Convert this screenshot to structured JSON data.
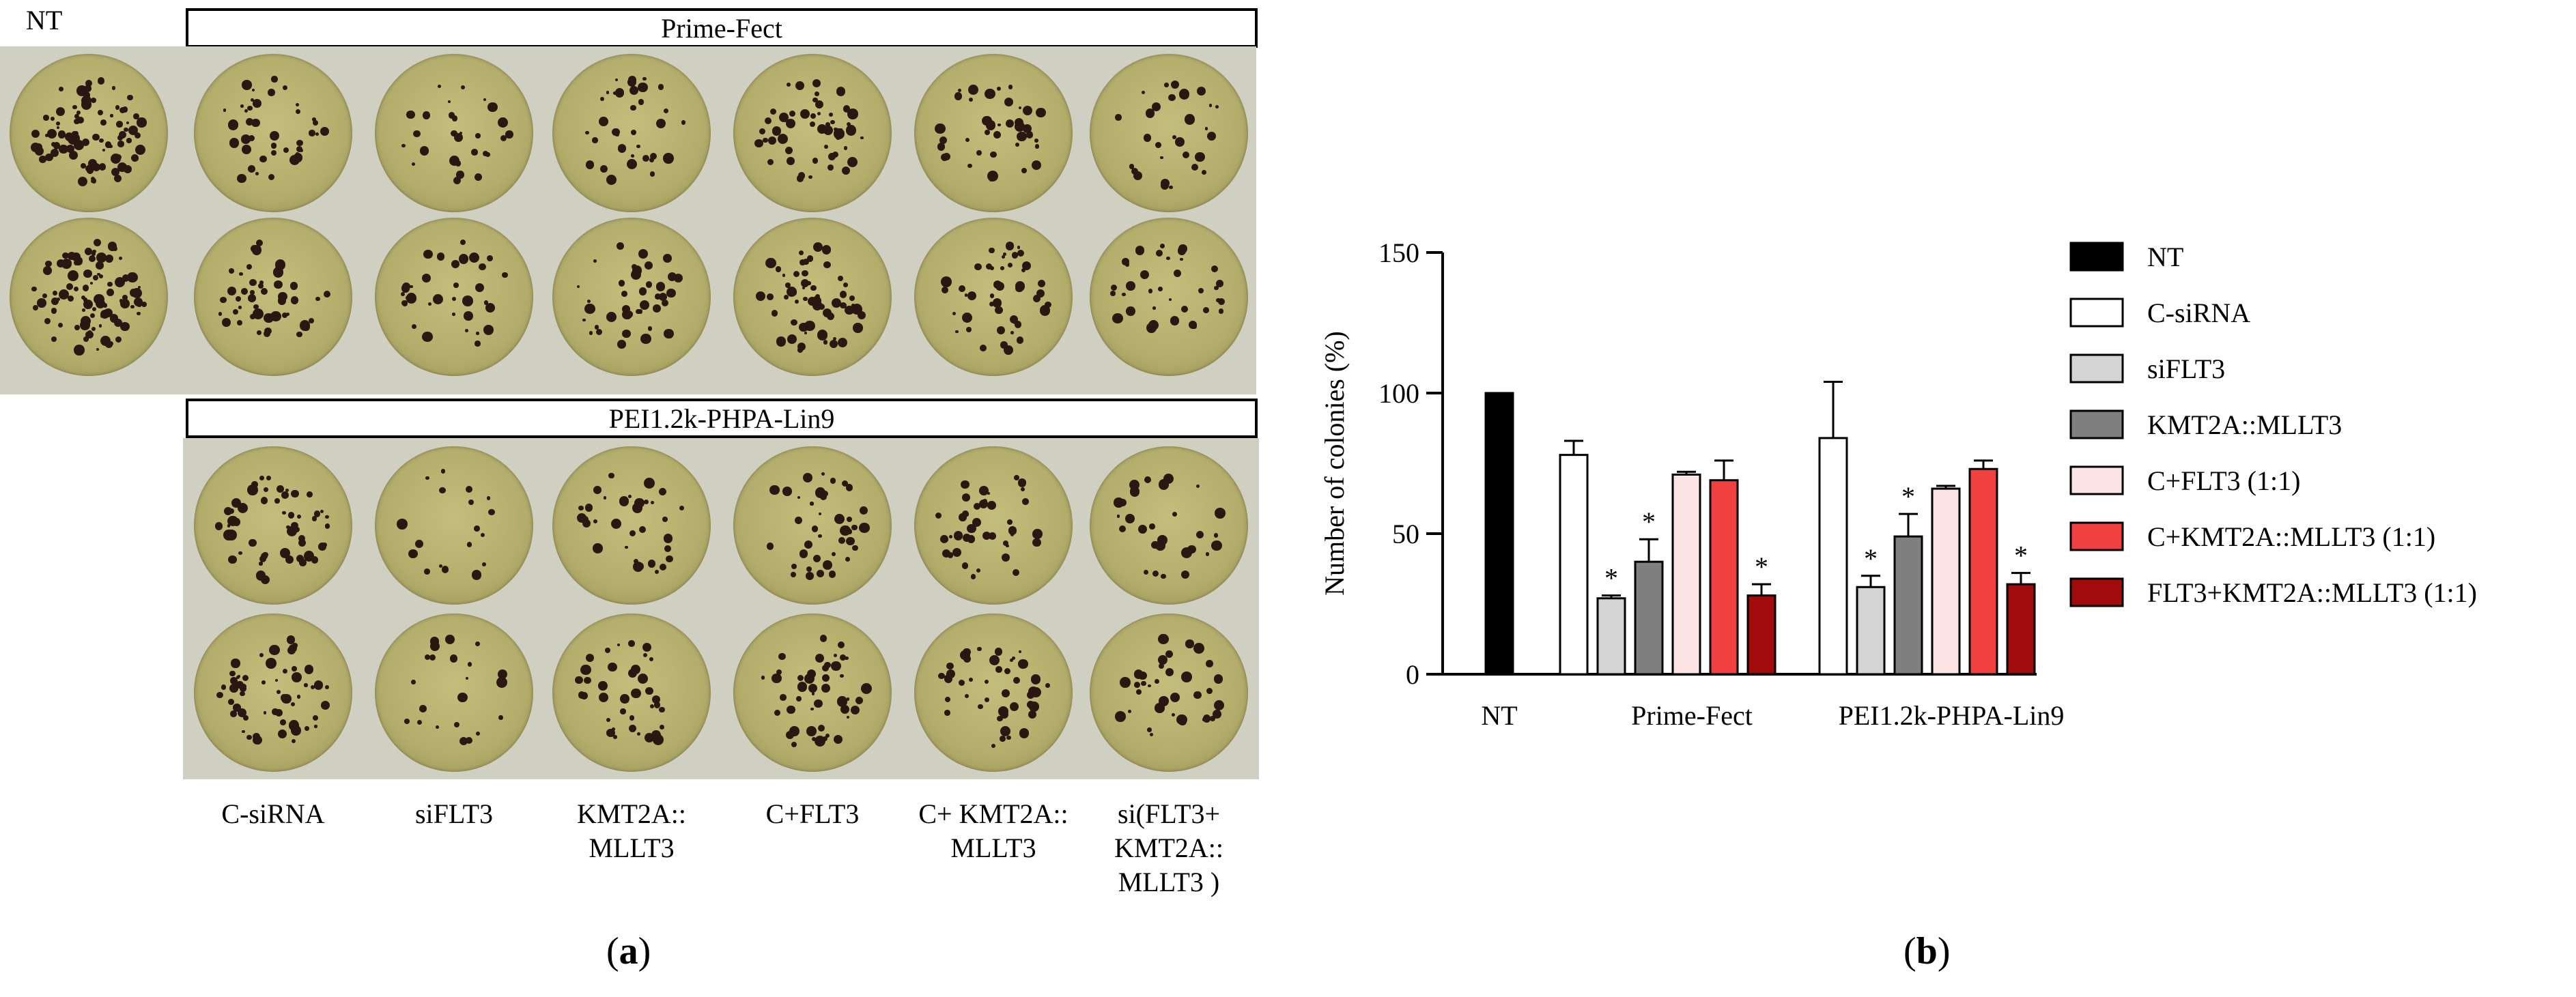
{
  "panel_a": {
    "nt_label": "NT",
    "box_top_label": "Prime-Fect",
    "box_bottom_label": "PEI1.2k-PHPA-Lin9",
    "column_labels": [
      "C-siRNA",
      "siFLT3",
      "KMT2A::\nMLLT3",
      "C+FLT3",
      "C+ KMT2A::\nMLLT3",
      "si(FLT3+\nKMT2A::\nMLLT3 )"
    ],
    "caption": "(a)",
    "colors": {
      "plate": "#cfd0c2",
      "agar": "#b3ad6c",
      "colony": "#2b1712"
    }
  },
  "panel_b": {
    "caption": "(b)"
  },
  "chart_data": {
    "type": "bar",
    "ylabel": "Number of colonies (%)",
    "ylim": [
      0,
      150
    ],
    "yticks": [
      0,
      50,
      100,
      150
    ],
    "groups": [
      "NT",
      "Prime-Fect",
      "PEI1.2k-PHPA-Lin9"
    ],
    "legend_position": "right",
    "series": [
      {
        "name": "NT",
        "color": "#000000",
        "values": [
          100,
          null,
          null
        ],
        "errors": [
          0,
          null,
          null
        ],
        "sig": [
          false,
          false,
          false
        ]
      },
      {
        "name": "C-siRNA",
        "color": "#ffffff",
        "values": [
          null,
          78,
          84
        ],
        "errors": [
          null,
          5,
          20
        ],
        "sig": [
          false,
          false,
          false
        ]
      },
      {
        "name": "siFLT3",
        "color": "#d4d4d4",
        "values": [
          null,
          27,
          31
        ],
        "errors": [
          null,
          1,
          4
        ],
        "sig": [
          false,
          true,
          true
        ]
      },
      {
        "name": "KMT2A::MLLT3",
        "color": "#7f7f7f",
        "values": [
          null,
          40,
          49
        ],
        "errors": [
          null,
          8,
          8
        ],
        "sig": [
          false,
          true,
          true
        ]
      },
      {
        "name": "C+FLT3 (1:1)",
        "color": "#fde4e4",
        "values": [
          null,
          71,
          66
        ],
        "errors": [
          null,
          1,
          1
        ],
        "sig": [
          false,
          false,
          false
        ]
      },
      {
        "name": "C+KMT2A::MLLT3 (1:1)",
        "color": "#f04040",
        "values": [
          null,
          69,
          73
        ],
        "errors": [
          null,
          7,
          3
        ],
        "sig": [
          false,
          false,
          false
        ]
      },
      {
        "name": "FLT3+KMT2A::MLLT3 (1:1)",
        "color": "#a10b0b",
        "values": [
          null,
          28,
          32
        ],
        "errors": [
          null,
          4,
          4
        ],
        "sig": [
          false,
          true,
          true
        ]
      }
    ],
    "significance_marker": "*"
  }
}
